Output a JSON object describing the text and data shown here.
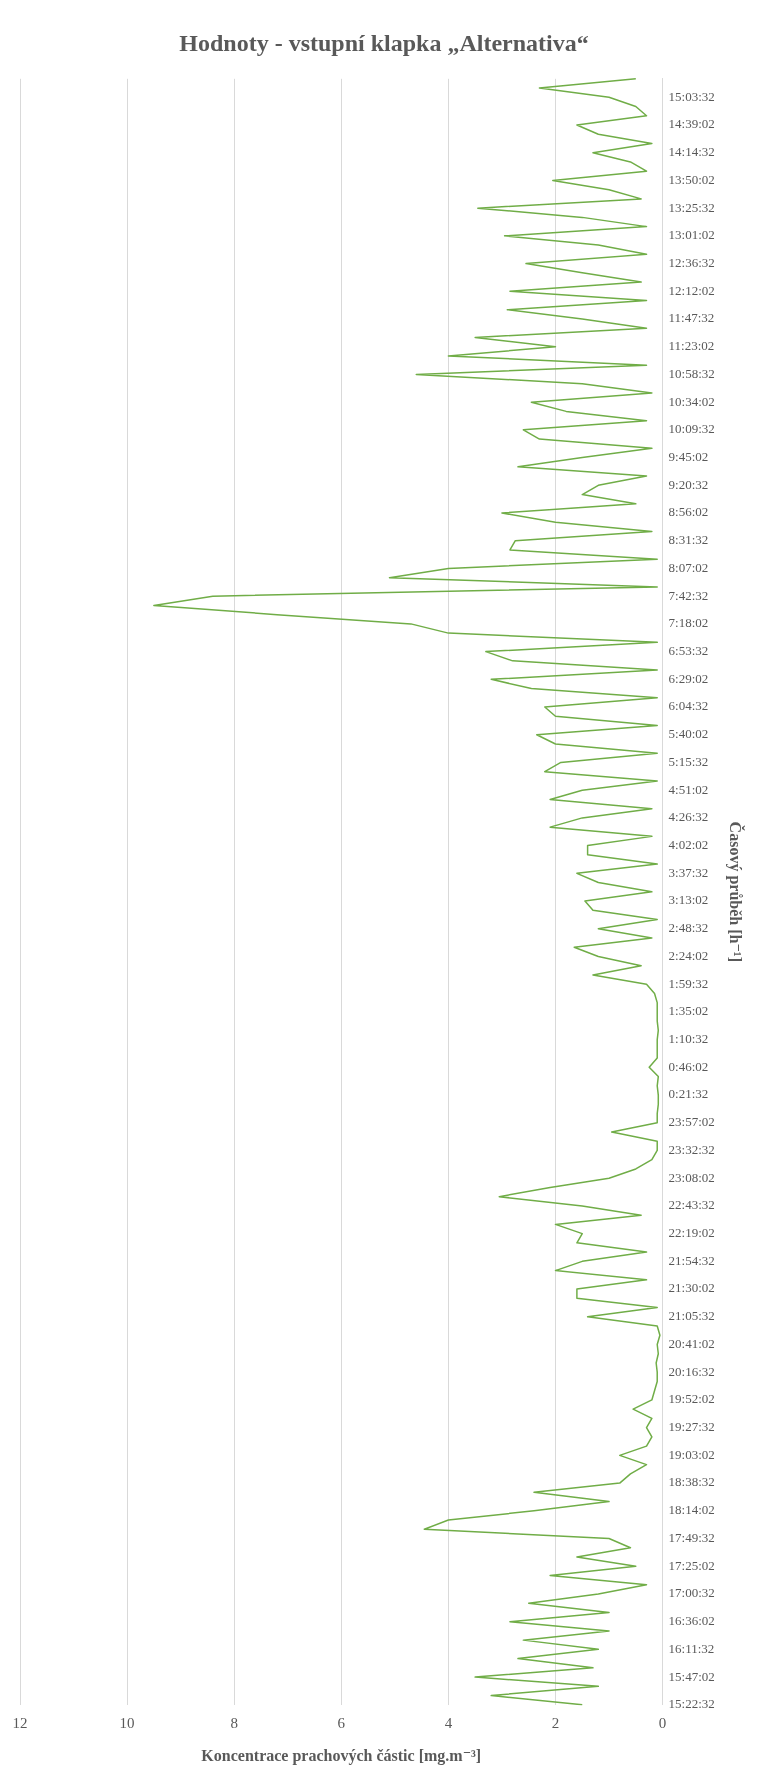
{
  "chart_data": {
    "type": "line",
    "title": "Hodnoty - vstupní klapka „Alternativa“",
    "orientation": "horizontal",
    "xlabel": "Koncentrace prachových částic [mg.m⁻³]",
    "ylabel": "Časový průběh [h⁻¹]",
    "categories": [
      null,
      null,
      "15:03:32",
      null,
      null,
      "14:39:02",
      null,
      null,
      "14:14:32",
      null,
      null,
      "13:50:02",
      null,
      null,
      "13:25:32",
      null,
      null,
      "13:01:02",
      null,
      null,
      "12:36:32",
      null,
      null,
      "12:12:02",
      null,
      null,
      "11:47:32",
      null,
      null,
      "11:23:02",
      null,
      null,
      "10:58:32",
      null,
      null,
      "10:34:02",
      null,
      null,
      "10:09:32",
      null,
      null,
      "9:45:02",
      null,
      null,
      "9:20:32",
      null,
      null,
      "8:56:02",
      null,
      null,
      "8:31:32",
      null,
      null,
      "8:07:02",
      null,
      null,
      "7:42:32",
      null,
      null,
      "7:18:02",
      null,
      null,
      "6:53:32",
      null,
      null,
      "6:29:02",
      null,
      null,
      "6:04:32",
      null,
      null,
      "5:40:02",
      null,
      null,
      "5:15:32",
      null,
      null,
      "4:51:02",
      null,
      null,
      "4:26:32",
      null,
      null,
      "4:02:02",
      null,
      null,
      "3:37:32",
      null,
      null,
      "3:13:02",
      null,
      null,
      "2:48:32",
      null,
      null,
      "2:24:02",
      null,
      null,
      "1:59:32",
      null,
      null,
      "1:35:02",
      null,
      null,
      "1:10:32",
      null,
      null,
      "0:46:02",
      null,
      null,
      "0:21:32",
      null,
      null,
      "23:57:02",
      null,
      null,
      "23:32:32",
      null,
      null,
      "23:08:02",
      null,
      null,
      "22:43:32",
      null,
      null,
      "22:19:02",
      null,
      null,
      "21:54:32",
      null,
      null,
      "21:30:02",
      null,
      null,
      "21:05:32",
      null,
      null,
      "20:41:02",
      null,
      null,
      "20:16:32",
      null,
      null,
      "19:52:02",
      null,
      null,
      "19:27:32",
      null,
      null,
      "19:03:02",
      null,
      null,
      "18:38:32",
      null,
      null,
      "18:14:02",
      null,
      null,
      "17:49:32",
      null,
      null,
      "17:25:02",
      null,
      null,
      "17:00:32",
      null,
      null,
      "16:36:02",
      null,
      null,
      "16:11:32",
      null,
      null,
      "15:47:02",
      null,
      null,
      "15:22:32"
    ],
    "series": [
      {
        "color": "#70ad47",
        "values": [
          0.5,
          2.3,
          1.0,
          0.5,
          0.3,
          1.6,
          1.2,
          0.2,
          1.3,
          0.6,
          0.3,
          2.05,
          1.0,
          0.4,
          3.45,
          1.5,
          0.3,
          2.95,
          1.2,
          0.3,
          2.55,
          1.5,
          0.4,
          2.85,
          0.3,
          2.9,
          1.5,
          0.3,
          3.5,
          2.0,
          4.0,
          0.3,
          4.6,
          1.5,
          0.2,
          2.45,
          1.8,
          0.3,
          2.6,
          2.3,
          0.2,
          1.5,
          2.7,
          0.3,
          1.2,
          1.5,
          0.5,
          3.0,
          2.0,
          0.2,
          2.75,
          2.85,
          0.1,
          4.0,
          5.1,
          0.1,
          8.4,
          9.5,
          7.2,
          4.7,
          4.0,
          0.1,
          3.3,
          2.8,
          0.1,
          3.2,
          2.45,
          0.1,
          2.2,
          2.0,
          0.1,
          2.35,
          2.0,
          0.1,
          1.9,
          2.2,
          0.1,
          1.5,
          2.1,
          0.2,
          1.5,
          2.1,
          0.2,
          1.4,
          1.4,
          0.1,
          1.6,
          1.2,
          0.2,
          1.45,
          1.3,
          0.1,
          1.2,
          0.2,
          1.65,
          1.2,
          0.4,
          1.3,
          0.3,
          0.15,
          0.1,
          0.1,
          0.1,
          0.08,
          0.1,
          0.1,
          0.1,
          0.25,
          0.08,
          0.1,
          0.08,
          0.08,
          0.1,
          0.1,
          0.95,
          0.1,
          0.1,
          0.2,
          0.5,
          1.0,
          2.1,
          3.05,
          1.5,
          0.4,
          2.0,
          1.5,
          1.6,
          0.3,
          1.5,
          2.0,
          0.3,
          1.6,
          1.6,
          0.1,
          1.4,
          0.1,
          0.05,
          0.1,
          0.08,
          0.12,
          0.1,
          0.1,
          0.15,
          0.2,
          0.55,
          0.2,
          0.3,
          0.2,
          0.3,
          0.8,
          0.3,
          0.6,
          0.8,
          2.4,
          1.0,
          2.4,
          4.0,
          4.45,
          1.0,
          0.6,
          1.6,
          0.5,
          2.1,
          0.3,
          1.2,
          2.5,
          1.0,
          2.85,
          1.0,
          2.6,
          1.2,
          2.7,
          1.3,
          3.5,
          1.2,
          3.2,
          1.5
        ]
      }
    ],
    "xlim": [
      12,
      0
    ],
    "xticks": [
      12,
      10,
      8,
      6,
      4,
      2,
      0
    ],
    "grid": "x"
  }
}
